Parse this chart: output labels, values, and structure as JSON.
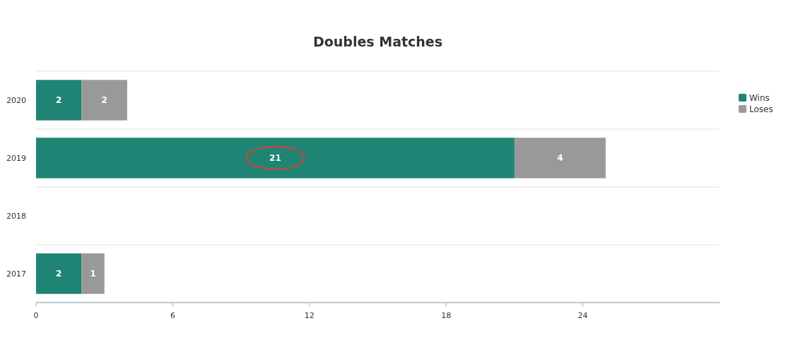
{
  "chart_data": {
    "type": "bar",
    "title": "Doubles Matches",
    "orientation": "horizontal",
    "stacked": true,
    "categories": [
      "2020",
      "2019",
      "2018",
      "2017"
    ],
    "series": [
      {
        "name": "Wins",
        "color": "#1f8473",
        "values": [
          2,
          21,
          null,
          2
        ]
      },
      {
        "name": "Loses",
        "color": "#999999",
        "values": [
          2,
          4,
          null,
          1
        ]
      }
    ],
    "xlim": [
      0,
      30
    ],
    "xticks": [
      0,
      6,
      12,
      18,
      24
    ],
    "grid": "y",
    "legend": "top right",
    "data_labels": true
  }
}
